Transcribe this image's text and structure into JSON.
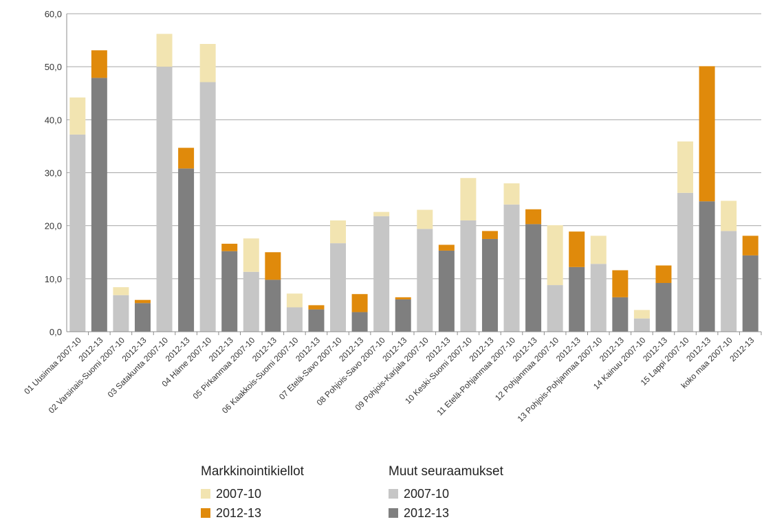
{
  "chart_data": {
    "type": "bar",
    "stacked": true,
    "ylim": [
      0,
      60
    ],
    "yticks": [
      "0,0",
      "10,0",
      "20,0",
      "30,0",
      "40,0",
      "50,0",
      "60,0"
    ],
    "grid": true,
    "legend_position": "bottom",
    "categories": [
      "01 Uusimaa 2007-10",
      "2012-13",
      "02 Varsinais-Suomi 2007-10",
      "2012-13",
      "03 Satakunta 2007-10",
      "2012-13",
      "04 Häme 2007-10",
      "2012-13",
      "05 Pirkanmaa 2007-10",
      "2012-13",
      "06 Kaakkois-Suomi 2007-10",
      "2012-13",
      "07 Etelä-Savo 2007-10",
      "2012-13",
      "08 Pohjois-Savo 2007-10",
      "2012-13",
      "09 Pohjois-Karjala 2007-10",
      "2012-13",
      "10 Keski-Suomi 2007-10",
      "2012-13",
      "11 Etelä-Pohjanmaa 2007-10",
      "2012-13",
      "12 Pohjanmaa 2007-10",
      "2012-13",
      "13 Pohjois-Pohjanmaa 2007-10",
      "2012-13",
      "14 Kainuu 2007-10",
      "2012-13",
      "15 Lappi 2007-10",
      "2012-13",
      "koko maa 2007-10",
      "2012-13"
    ],
    "period_index": [
      0,
      1,
      0,
      1,
      0,
      1,
      0,
      1,
      0,
      1,
      0,
      1,
      0,
      1,
      0,
      1,
      0,
      1,
      0,
      1,
      0,
      1,
      0,
      1,
      0,
      1,
      0,
      1,
      0,
      1,
      0,
      1
    ],
    "muut_seuraamukset": [
      37.2,
      47.9,
      6.9,
      5.4,
      50.0,
      30.8,
      47.1,
      15.2,
      11.3,
      9.8,
      4.6,
      4.2,
      16.7,
      3.7,
      21.8,
      6.1,
      19.4,
      15.3,
      21.0,
      17.5,
      24.0,
      20.3,
      8.8,
      12.2,
      12.8,
      6.5,
      2.5,
      9.2,
      26.2,
      24.6,
      19.0,
      14.4
    ],
    "markkinointikiellot": [
      7.0,
      5.2,
      1.5,
      0.6,
      6.2,
      3.9,
      7.2,
      1.4,
      6.3,
      5.2,
      2.6,
      0.8,
      4.3,
      3.4,
      0.8,
      0.4,
      3.6,
      1.1,
      8.0,
      1.5,
      4.0,
      2.8,
      11.3,
      6.7,
      5.3,
      5.1,
      1.6,
      3.3,
      9.7,
      25.5,
      5.7,
      3.7
    ],
    "colors": {
      "muut_2007": "#c6c6c6",
      "muut_2012": "#7f7f7f",
      "mk_2007": "#f2e4b1",
      "mk_2012": "#e08a0b",
      "grid": "#a6a6a6",
      "axis": "#8c8c8c"
    },
    "legend": {
      "groups": [
        {
          "title": "Markkinointikiellot",
          "items": [
            {
              "label": "2007-10",
              "color": "#f2e4b1"
            },
            {
              "label": "2012-13",
              "color": "#e08a0b"
            }
          ]
        },
        {
          "title": "Muut seuraamukset",
          "items": [
            {
              "label": "2007-10",
              "color": "#c6c6c6"
            },
            {
              "label": "2012-13",
              "color": "#7f7f7f"
            }
          ]
        }
      ]
    }
  }
}
